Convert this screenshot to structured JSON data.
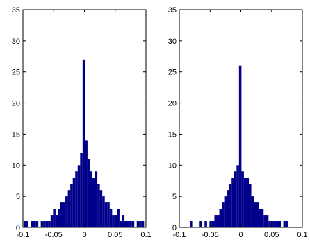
{
  "chart_data": [
    {
      "type": "bar",
      "xlim": [
        -0.1,
        0.1
      ],
      "ylim": [
        0,
        35
      ],
      "xticks": [
        -0.1,
        -0.05,
        0,
        0.05,
        0.1
      ],
      "xtick_labels": [
        "-0.1",
        "-0.05",
        "0",
        "0.05",
        "0.1"
      ],
      "yticks": [
        0,
        5,
        10,
        15,
        20,
        25,
        30,
        35
      ],
      "ytick_labels": [
        "0",
        "5",
        "10",
        "15",
        "20",
        "25",
        "30",
        "35"
      ],
      "grid": false,
      "bar_color": "#00008b",
      "x": [
        -0.097,
        -0.093,
        -0.089,
        -0.085,
        -0.081,
        -0.077,
        -0.073,
        -0.069,
        -0.065,
        -0.061,
        -0.057,
        -0.053,
        -0.049,
        -0.045,
        -0.041,
        -0.037,
        -0.033,
        -0.029,
        -0.025,
        -0.021,
        -0.017,
        -0.013,
        -0.009,
        -0.005,
        -0.001,
        0.003,
        0.007,
        0.011,
        0.015,
        0.019,
        0.023,
        0.027,
        0.031,
        0.035,
        0.039,
        0.043,
        0.047,
        0.051,
        0.055,
        0.059,
        0.063,
        0.067,
        0.071,
        0.075,
        0.079,
        0.083,
        0.087,
        0.091,
        0.095
      ],
      "values": [
        1,
        1,
        0,
        1,
        1,
        1,
        0,
        1,
        1,
        1,
        1,
        2,
        3,
        2,
        3,
        4,
        4,
        5,
        6,
        7,
        8,
        9,
        10,
        12,
        27,
        14,
        11,
        9,
        8,
        9,
        7,
        6,
        5,
        4,
        4,
        3,
        2,
        2,
        3,
        1,
        2,
        1,
        1,
        1,
        1,
        0,
        1,
        1,
        1
      ]
    },
    {
      "type": "bar",
      "xlim": [
        -0.1,
        0.1
      ],
      "ylim": [
        0,
        35
      ],
      "xticks": [
        -0.1,
        -0.05,
        0,
        0.05,
        0.1
      ],
      "xtick_labels": [
        "-0.1",
        "-0.05",
        "0",
        "0.05",
        "0.1"
      ],
      "yticks": [
        0,
        5,
        10,
        15,
        20,
        25,
        30,
        35
      ],
      "ytick_labels": [
        "0",
        "5",
        "10",
        "15",
        "20",
        "25",
        "30",
        "35"
      ],
      "grid": false,
      "bar_color": "#00008b",
      "x": [
        -0.081,
        -0.077,
        -0.073,
        -0.069,
        -0.065,
        -0.061,
        -0.057,
        -0.053,
        -0.049,
        -0.045,
        -0.041,
        -0.037,
        -0.033,
        -0.029,
        -0.025,
        -0.021,
        -0.017,
        -0.013,
        -0.009,
        -0.005,
        -0.001,
        0.003,
        0.007,
        0.011,
        0.015,
        0.019,
        0.023,
        0.027,
        0.031,
        0.035,
        0.039,
        0.043,
        0.047,
        0.051,
        0.055,
        0.059,
        0.063,
        0.067,
        0.071,
        0.075
      ],
      "values": [
        1,
        0,
        0,
        0,
        1,
        0,
        1,
        0,
        1,
        1,
        2,
        2,
        3,
        4,
        5,
        6,
        7,
        8,
        9,
        10,
        26,
        9,
        8,
        8,
        7,
        5,
        4,
        4,
        3,
        3,
        2,
        2,
        1,
        1,
        1,
        1,
        1,
        0,
        1,
        1
      ]
    }
  ]
}
